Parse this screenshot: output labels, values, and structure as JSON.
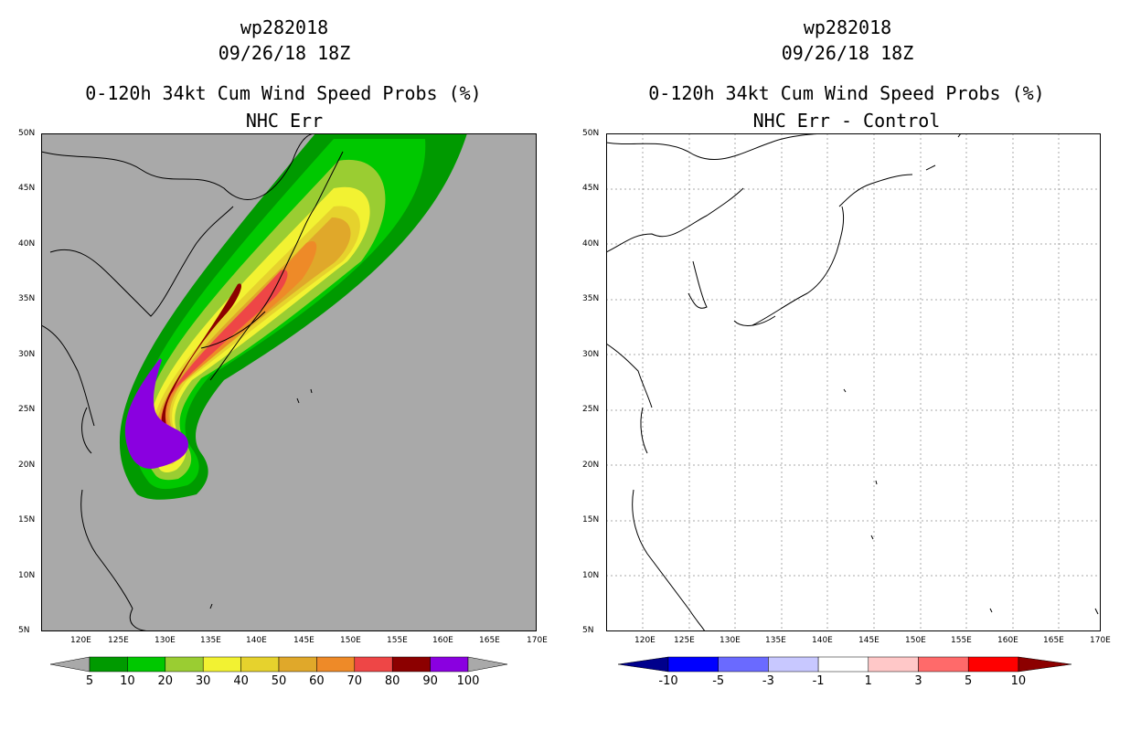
{
  "left_panel": {
    "storm_id": "wp282018",
    "datetime": "09/26/18 18Z",
    "product": "0-120h 34kt Cum Wind Speed Probs (%)",
    "subtitle": "NHC Err",
    "background_color": "#a9a9a9",
    "colorbar": {
      "labels": [
        "5",
        "10",
        "20",
        "30",
        "40",
        "50",
        "60",
        "70",
        "80",
        "90",
        "100"
      ],
      "colors": [
        "#009a00",
        "#00c800",
        "#9acd32",
        "#f2f232",
        "#e6d22d",
        "#e0a82a",
        "#ee8a28",
        "#ee4646",
        "#8c0000",
        "#8a00e0"
      ],
      "end_color": "#a9a9a9"
    }
  },
  "right_panel": {
    "storm_id": "wp282018",
    "datetime": "09/26/18 18Z",
    "product": "0-120h 34kt Cum Wind Speed Probs (%)",
    "subtitle": "NHC Err - Control",
    "background_color": "#ffffff",
    "colorbar": {
      "labels": [
        "-10",
        "-5",
        "-3",
        "-1",
        "1",
        "3",
        "5",
        "10"
      ],
      "colors": [
        "#0000ff",
        "#6a6aff",
        "#c8c8ff",
        "#ffffff",
        "#ffc8c8",
        "#ff6a6a",
        "#ff0000"
      ],
      "low_end_color": "#00008c",
      "high_end_color": "#8c0000"
    }
  },
  "map": {
    "lat_labels": [
      "50N",
      "45N",
      "40N",
      "35N",
      "30N",
      "25N",
      "20N",
      "15N",
      "10N",
      "5N"
    ],
    "lon_labels": [
      "120E",
      "125E",
      "130E",
      "135E",
      "140E",
      "145E",
      "150E",
      "155E",
      "160E",
      "165E",
      "170E"
    ]
  }
}
